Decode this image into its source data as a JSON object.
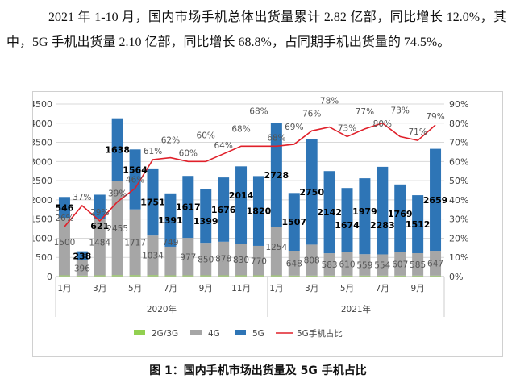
{
  "paragraph": "2021 年 1-10 月，国内市场手机总体出货量累计 2.82 亿部，同比增长 12.0%，其中，5G 手机出货量 2.10 亿部，同比增长 68.8%，占同期手机出货量的 74.5%。",
  "caption": "图 1：国内手机市场出货量及 5G 手机占比",
  "chart_data": {
    "type": "bar",
    "stacked": true,
    "categories": [
      "2020-1月",
      "2020-2月",
      "2020-3月",
      "2020-4月",
      "2020-5月",
      "2020-6月",
      "2020-7月",
      "2020-8月",
      "2020-9月",
      "2020-10月",
      "2020-11月",
      "2020-12月",
      "2021-1月",
      "2021-2月",
      "2021-3月",
      "2021-4月",
      "2021-5月",
      "2021-6月",
      "2021-7月",
      "2021-8月",
      "2021-9月",
      "2021-10月"
    ],
    "x_tick_labels": [
      "1月",
      "",
      "3月",
      "",
      "5月",
      "",
      "7月",
      "",
      "9月",
      "",
      "11月",
      "",
      "1月",
      "",
      "3月",
      "",
      "5月",
      "",
      "7月",
      "",
      "9月",
      ""
    ],
    "year_groups": [
      {
        "label": "2020年",
        "count": 12
      },
      {
        "label": "2021年",
        "count": 10
      }
    ],
    "series": [
      {
        "name": "2G/3G",
        "type": "bar",
        "color": "#92d050",
        "values": [
          30,
          25,
          30,
          35,
          35,
          35,
          30,
          30,
          30,
          30,
          30,
          30,
          30,
          25,
          25,
          25,
          25,
          25,
          25,
          25,
          25,
          25
        ]
      },
      {
        "name": "4G",
        "type": "bar",
        "color": "#a6a6a6",
        "values": [
          1500,
          396,
          1484,
          2455,
          1717,
          1034,
          749,
          977,
          850,
          878,
          830,
          770,
          1254,
          648,
          808,
          583,
          610,
          559,
          554,
          607,
          585,
          647
        ]
      },
      {
        "name": "5G",
        "type": "bar",
        "color": "#2e75b6",
        "values": [
          546,
          238,
          621,
          1638,
          1564,
          1751,
          1391,
          1617,
          1399,
          1676,
          2014,
          1820,
          2728,
          1507,
          2750,
          2142,
          1674,
          1979,
          2283,
          1769,
          1512,
          2659
        ]
      },
      {
        "name": "5G手机占比",
        "type": "line",
        "axis": "right",
        "color": "#e0202a",
        "values": [
          26,
          37,
          29,
          39,
          46,
          61,
          62,
          60,
          60,
          64,
          68,
          68,
          68,
          69,
          76,
          78,
          73,
          77,
          80,
          73,
          71,
          79
        ]
      }
    ],
    "y_left": {
      "min": 0,
      "max": 4500,
      "step": 500
    },
    "y_right": {
      "min": 0,
      "max": 90,
      "step": 10,
      "unit": "%"
    },
    "grid": true,
    "legend": "bottom"
  }
}
